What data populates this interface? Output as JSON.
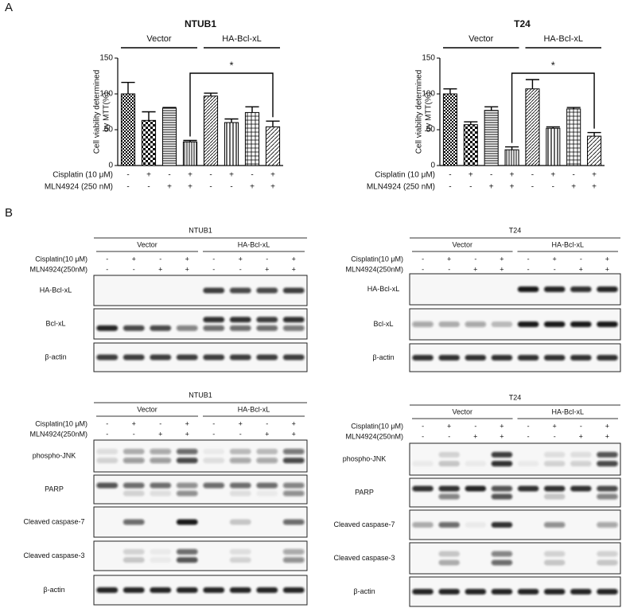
{
  "panel_labels": [
    "A",
    "B"
  ],
  "chart_data": [
    {
      "type": "bar",
      "title": "NTUB1",
      "ylabel_lines": [
        "Cell viability determined",
        "by MTT(%)"
      ],
      "groups": [
        "Vector",
        "HA-Bcl-xL"
      ],
      "treatments": [
        {
          "label": "Cisplatin (10 μM)",
          "signs": [
            "-",
            "+",
            "-",
            "+",
            "-",
            "+",
            "-",
            "+"
          ]
        },
        {
          "label": "MLN4924 (250 nM)",
          "signs": [
            "-",
            "-",
            "+",
            "+",
            "-",
            "-",
            "+",
            "+"
          ]
        }
      ],
      "categories": [
        null,
        null,
        null,
        null,
        null,
        null,
        null,
        null
      ],
      "values": [
        100,
        63,
        80,
        33,
        97,
        60,
        74,
        54
      ],
      "errors": [
        16,
        12,
        1,
        2,
        4,
        5,
        8,
        8
      ],
      "annotation": "*",
      "color": "#000000",
      "ylim": [
        0,
        150
      ],
      "yticks": [
        0,
        50,
        100,
        150
      ]
    },
    {
      "type": "bar",
      "title": "T24",
      "ylabel_lines": [
        "Cell viability determined",
        "by MTT(%)"
      ],
      "groups": [
        "Vector",
        "HA-Bcl-xL"
      ],
      "treatments": [
        {
          "label": "Cisplatin (10 μM)",
          "signs": [
            "-",
            "+",
            "-",
            "+",
            "-",
            "+",
            "-",
            "+"
          ]
        },
        {
          "label": "MLN4924 (250 nM)",
          "signs": [
            "-",
            "-",
            "+",
            "+",
            "-",
            "-",
            "+",
            "+"
          ]
        }
      ],
      "categories": [
        null,
        null,
        null,
        null,
        null,
        null,
        null,
        null
      ],
      "values": [
        100,
        57,
        77,
        22,
        107,
        52,
        79,
        41
      ],
      "errors": [
        7,
        4,
        5,
        4,
        13,
        2,
        2,
        5
      ],
      "annotation": "*",
      "color": "#000000",
      "ylim": [
        0,
        150
      ],
      "yticks": [
        0,
        50,
        100,
        150
      ]
    }
  ],
  "blots": [
    {
      "title": "NTUB1",
      "groups": [
        "Vector",
        "HA-Bcl-xL"
      ],
      "treatments": [
        {
          "label": "Cisplatin(10 μM)",
          "signs": [
            "-",
            "+",
            "-",
            "+",
            "-",
            "+",
            "-",
            "+"
          ]
        },
        {
          "label": "MLN4924(250nM)",
          "signs": [
            "-",
            "-",
            "+",
            "+",
            "-",
            "-",
            "+",
            "+"
          ]
        }
      ],
      "rows": [
        {
          "label": "HA-Bcl-xL",
          "bands": [
            0,
            0,
            0,
            0,
            0.8,
            0.75,
            0.75,
            0.8
          ]
        },
        {
          "label": "Bcl-xL",
          "bands": [
            0,
            0,
            0,
            0,
            0.85,
            0.85,
            0.8,
            0.85
          ],
          "bands2": [
            0.9,
            0.75,
            0.75,
            0.5,
            0.6,
            0.6,
            0.6,
            0.55
          ]
        },
        {
          "label": "β-actin",
          "bands": [
            0.8,
            0.8,
            0.8,
            0.8,
            0.8,
            0.8,
            0.8,
            0.8
          ]
        }
      ]
    },
    {
      "title": "T24",
      "groups": [
        "Vector",
        "HA-Bcl-xL"
      ],
      "treatments": [
        {
          "label": "Cisplatin(10 μM)",
          "signs": [
            "-",
            "+",
            "-",
            "+",
            "-",
            "+",
            "-",
            "+"
          ]
        },
        {
          "label": "MLN4924(250nM)",
          "signs": [
            "-",
            "-",
            "+",
            "+",
            "-",
            "-",
            "+",
            "+"
          ]
        }
      ],
      "rows": [
        {
          "label": "HA-Bcl-xL",
          "bands": [
            0,
            0,
            0,
            0,
            0.95,
            0.9,
            0.85,
            0.9
          ]
        },
        {
          "label": "Bcl-xL",
          "bands": [
            0.35,
            0.3,
            0.35,
            0.25,
            0.95,
            0.95,
            0.95,
            0.95
          ]
        },
        {
          "label": "β-actin",
          "bands": [
            0.85,
            0.85,
            0.85,
            0.85,
            0.85,
            0.85,
            0.85,
            0.85
          ]
        }
      ]
    },
    {
      "title": "NTUB1",
      "groups": [
        "Vector",
        "HA-Bcl-xL"
      ],
      "treatments": [
        {
          "label": "Cisplatin(10 μM)",
          "signs": [
            "-",
            "+",
            "-",
            "+",
            "-",
            "+",
            "-",
            "+"
          ]
        },
        {
          "label": "MLN4924(250nM)",
          "signs": [
            "-",
            "-",
            "+",
            "+",
            "-",
            "-",
            "+",
            "+"
          ]
        }
      ],
      "rows": [
        {
          "label": "phospho-JNK",
          "bands": [
            0.1,
            0.3,
            0.35,
            0.6,
            0.05,
            0.25,
            0.25,
            0.55
          ],
          "bands2": [
            0.15,
            0.4,
            0.4,
            0.75,
            0.1,
            0.35,
            0.35,
            0.75
          ]
        },
        {
          "label": "PARP",
          "bands": [
            0.7,
            0.6,
            0.6,
            0.45,
            0.6,
            0.6,
            0.6,
            0.5
          ],
          "bands2": [
            0,
            0.15,
            0.1,
            0.45,
            0,
            0.1,
            0.05,
            0.45
          ]
        },
        {
          "label": "Cleaved caspase-7",
          "bands": [
            0,
            0.6,
            0,
            0.95,
            0,
            0.2,
            0,
            0.6
          ]
        },
        {
          "label": "Cleaved caspase-3",
          "bands": [
            0,
            0.15,
            0.05,
            0.6,
            0,
            0.1,
            0,
            0.35
          ],
          "bands2": [
            0,
            0.2,
            0.05,
            0.7,
            0,
            0.15,
            0,
            0.45
          ]
        },
        {
          "label": "β-actin",
          "bands": [
            0.9,
            0.9,
            0.9,
            0.9,
            0.9,
            0.9,
            0.9,
            0.9
          ]
        }
      ]
    },
    {
      "title": "T24",
      "groups": [
        "Vector",
        "HA-Bcl-xL"
      ],
      "treatments": [
        {
          "label": "Cisplatin(10 μM)",
          "signs": [
            "-",
            "+",
            "-",
            "+",
            "-",
            "+",
            "-",
            "+"
          ]
        },
        {
          "label": "MLN4924(250nM)",
          "signs": [
            "-",
            "-",
            "+",
            "+",
            "-",
            "-",
            "+",
            "+"
          ]
        }
      ],
      "rows": [
        {
          "label": "phospho-JNK",
          "bands": [
            0,
            0.15,
            0,
            0.8,
            0,
            0.1,
            0.1,
            0.7
          ],
          "bands2": [
            0.05,
            0.2,
            0.05,
            0.85,
            0.05,
            0.15,
            0.15,
            0.75
          ]
        },
        {
          "label": "PARP",
          "bands": [
            0.85,
            0.85,
            0.9,
            0.7,
            0.85,
            0.85,
            0.85,
            0.75
          ],
          "bands2": [
            0,
            0.5,
            0,
            0.7,
            0,
            0.2,
            0,
            0.5
          ]
        },
        {
          "label": "Cleaved caspase-7",
          "bands": [
            0.3,
            0.6,
            0.05,
            0.85,
            0,
            0.45,
            0,
            0.35
          ]
        },
        {
          "label": "Cleaved caspase-3",
          "bands": [
            0,
            0.2,
            0,
            0.5,
            0,
            0.15,
            0,
            0.15
          ],
          "bands2": [
            0,
            0.3,
            0,
            0.6,
            0,
            0.2,
            0,
            0.2
          ]
        },
        {
          "label": "β-actin",
          "bands": [
            0.9,
            0.9,
            0.9,
            0.9,
            0.9,
            0.9,
            0.9,
            0.9
          ]
        }
      ]
    }
  ]
}
